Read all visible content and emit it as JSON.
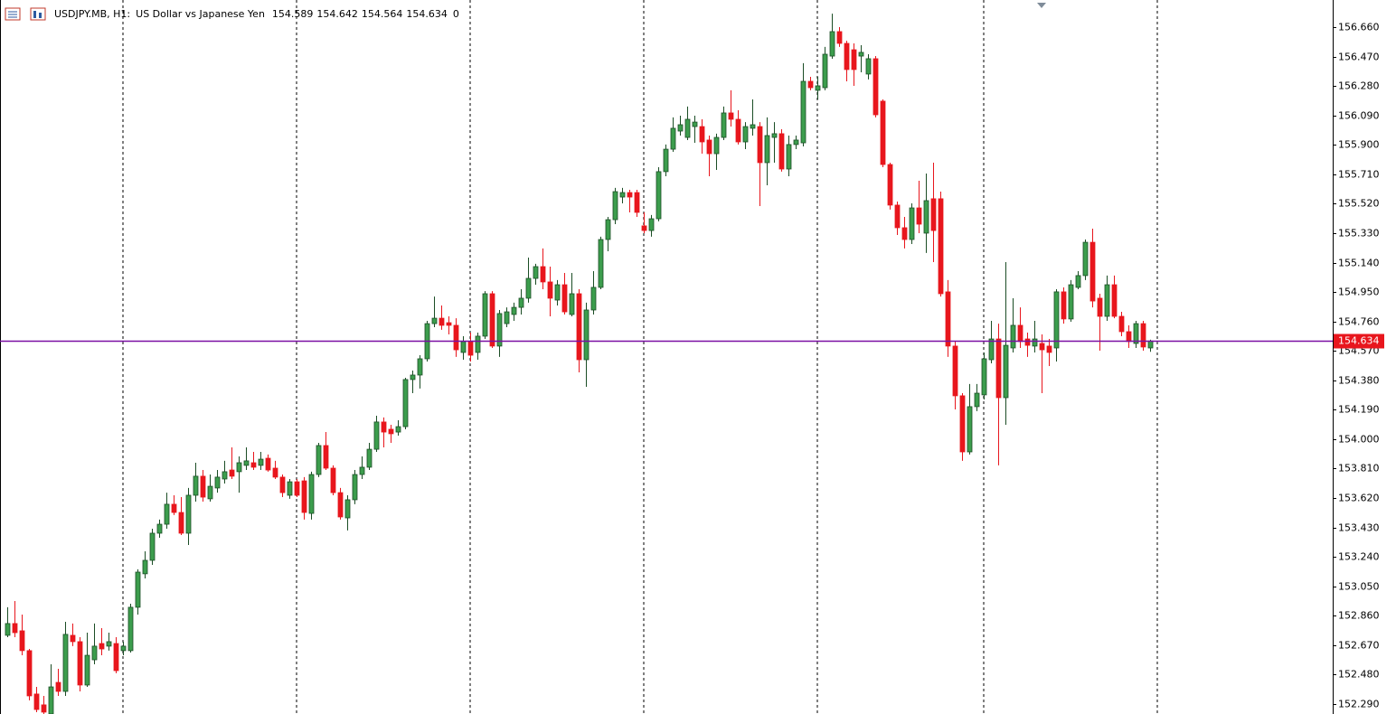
{
  "header": {
    "symbol": "USDJPY.MB, H1:",
    "description": "US Dollar vs Japanese Yen",
    "ohlc": [
      154.589,
      154.642,
      154.564,
      154.634
    ],
    "volume": 0
  },
  "chart_data": {
    "type": "candlestick",
    "up_color": "#3c9d4d",
    "down_color": "#e8161d",
    "price_line_color": "#7a0fa3",
    "price_line": 154.634,
    "ylim": [
      152.226,
      156.835
    ],
    "yticks": [
      {
        "value": 152.29,
        "label": "152.290"
      },
      {
        "value": 152.48,
        "label": "152.480"
      },
      {
        "value": 152.67,
        "label": "152.670"
      },
      {
        "value": 152.86,
        "label": "152.860"
      },
      {
        "value": 153.05,
        "label": "153.050"
      },
      {
        "value": 153.24,
        "label": "153.240"
      },
      {
        "value": 153.43,
        "label": "153.430"
      },
      {
        "value": 153.62,
        "label": "153.620"
      },
      {
        "value": 153.81,
        "label": "153.810"
      },
      {
        "value": 154.0,
        "label": "154.000"
      },
      {
        "value": 154.19,
        "label": "154.190"
      },
      {
        "value": 154.38,
        "label": "154.380"
      },
      {
        "value": 154.57,
        "label": "154.570"
      },
      {
        "value": 154.76,
        "label": "154.760"
      },
      {
        "value": 154.95,
        "label": "154.950"
      },
      {
        "value": 155.14,
        "label": "155.140"
      },
      {
        "value": 155.33,
        "label": "155.330"
      },
      {
        "value": 155.52,
        "label": "155.520"
      },
      {
        "value": 155.71,
        "label": "155.710"
      },
      {
        "value": 155.9,
        "label": "155.900"
      },
      {
        "value": 156.09,
        "label": "156.090"
      },
      {
        "value": 156.28,
        "label": "156.280"
      },
      {
        "value": 156.47,
        "label": "156.470"
      },
      {
        "value": 156.66,
        "label": "156.660"
      }
    ],
    "open": [
      152.734,
      152.81,
      152.763,
      152.635,
      152.355,
      152.285,
      152.226,
      152.43,
      152.372,
      152.734,
      152.693,
      152.413,
      152.576,
      152.681,
      152.664,
      152.681,
      152.635,
      152.635,
      152.915,
      153.131,
      153.218,
      153.393,
      153.451,
      153.58,
      153.527,
      153.393,
      153.638,
      153.761,
      153.615,
      153.685,
      153.743,
      153.801,
      153.79,
      153.831,
      153.848,
      153.831,
      153.877,
      153.813,
      153.755,
      153.638,
      153.725,
      153.731,
      153.521,
      153.772,
      153.959,
      153.813,
      153.655,
      153.492,
      153.609,
      153.772,
      153.819,
      153.935,
      154.111,
      154.064,
      154.046,
      154.081,
      154.385,
      154.414,
      154.519,
      154.746,
      154.781,
      154.752,
      154.735,
      154.56,
      154.63,
      154.56,
      154.665,
      154.939,
      154.601,
      154.746,
      154.805,
      154.851,
      154.91,
      155.038,
      155.114,
      155.015,
      154.898,
      154.997,
      154.805,
      154.939,
      154.513,
      154.834,
      154.98,
      155.289,
      155.417,
      155.563,
      155.592,
      155.592,
      155.377,
      155.347,
      155.423,
      155.727,
      155.872,
      155.989,
      155.948,
      156.018,
      156.018,
      155.931,
      155.843,
      155.948,
      156.106,
      156.065,
      155.919,
      156.007,
      156.018,
      155.785,
      155.948,
      155.972,
      155.744,
      155.902,
      155.913,
      156.31,
      156.252,
      156.269,
      156.473,
      156.631,
      156.555,
      156.514,
      156.473,
      156.357,
      156.456,
      156.182,
      155.773,
      155.511,
      155.365,
      155.289,
      155.493,
      155.33,
      155.552,
      155.552,
      154.951,
      154.601,
      154.28,
      153.918,
      154.21,
      154.286,
      154.513,
      154.647,
      154.268,
      154.589,
      154.735,
      154.647,
      154.601,
      154.618,
      154.601,
      154.589,
      154.951,
      154.776,
      154.98,
      155.056,
      155.271,
      154.91,
      154.793,
      154.997,
      154.793,
      154.694,
      154.618,
      154.746,
      154.589
    ],
    "high": [
      152.915,
      152.955,
      152.868,
      152.646,
      152.401,
      152.343,
      152.547,
      152.518,
      152.821,
      152.81,
      152.722,
      152.751,
      152.81,
      152.78,
      152.751,
      152.722,
      152.693,
      152.938,
      153.16,
      153.276,
      153.422,
      153.481,
      153.655,
      153.638,
      153.626,
      153.685,
      153.848,
      153.801,
      153.772,
      153.801,
      153.86,
      153.947,
      153.889,
      153.947,
      153.918,
      153.918,
      153.901,
      153.86,
      153.772,
      153.743,
      153.743,
      153.755,
      153.79,
      153.976,
      154.046,
      153.831,
      153.685,
      153.638,
      153.801,
      153.889,
      153.976,
      154.151,
      154.14,
      154.093,
      154.122,
      154.396,
      154.443,
      154.542,
      154.764,
      154.921,
      154.863,
      154.793,
      154.781,
      154.665,
      154.688,
      154.688,
      154.956,
      154.956,
      154.834,
      154.851,
      154.881,
      154.968,
      155.172,
      155.132,
      155.231,
      155.114,
      155.027,
      155.073,
      155.073,
      154.968,
      154.881,
      155.085,
      155.307,
      155.435,
      155.622,
      155.622,
      155.61,
      155.61,
      155.464,
      155.447,
      155.756,
      155.902,
      156.077,
      156.088,
      156.147,
      156.088,
      156.065,
      155.96,
      155.972,
      156.147,
      156.252,
      156.123,
      156.047,
      156.193,
      156.047,
      156.077,
      156.047,
      156.001,
      155.96,
      155.96,
      156.427,
      156.339,
      156.339,
      156.532,
      156.747,
      156.66,
      156.572,
      156.555,
      156.543,
      156.485,
      156.473,
      156.193,
      155.785,
      155.534,
      155.435,
      155.522,
      155.668,
      155.715,
      155.785,
      155.598,
      155.027,
      154.63,
      154.297,
      154.356,
      154.356,
      154.56,
      154.764,
      154.746,
      155.143,
      154.91,
      154.851,
      154.688,
      154.764,
      154.676,
      154.647,
      154.968,
      154.98,
      155.027,
      155.085,
      155.289,
      155.359,
      154.939,
      155.056,
      155.056,
      154.822,
      154.735,
      154.764,
      154.764,
      154.642
    ],
    "low": [
      152.722,
      152.722,
      152.605,
      152.314,
      152.238,
      152.226,
      152.226,
      152.343,
      152.343,
      152.664,
      152.372,
      152.401,
      152.547,
      152.605,
      152.635,
      152.489,
      152.605,
      152.623,
      152.868,
      153.101,
      153.189,
      153.364,
      153.422,
      153.51,
      153.381,
      153.317,
      153.597,
      153.597,
      153.597,
      153.655,
      153.714,
      153.743,
      153.655,
      153.801,
      153.801,
      153.801,
      153.79,
      153.743,
      153.626,
      153.615,
      153.626,
      153.481,
      153.481,
      153.755,
      153.801,
      153.638,
      153.481,
      153.411,
      153.58,
      153.743,
      153.801,
      153.918,
      153.947,
      153.976,
      154.023,
      154.064,
      154.297,
      154.327,
      154.501,
      154.723,
      154.706,
      154.676,
      154.531,
      154.513,
      154.501,
      154.513,
      154.647,
      154.589,
      154.531,
      154.723,
      154.764,
      154.805,
      154.881,
      154.997,
      154.968,
      154.793,
      154.863,
      154.805,
      154.793,
      154.431,
      154.338,
      154.805,
      154.968,
      155.213,
      155.388,
      155.522,
      155.464,
      155.435,
      155.33,
      155.307,
      155.406,
      155.697,
      155.855,
      155.96,
      155.931,
      155.913,
      155.843,
      155.697,
      155.738,
      155.931,
      156.018,
      155.902,
      155.872,
      155.96,
      155.505,
      155.639,
      155.785,
      155.727,
      155.697,
      155.872,
      155.89,
      156.252,
      156.193,
      156.252,
      156.456,
      156.532,
      156.31,
      156.281,
      156.368,
      156.322,
      156.077,
      155.756,
      155.482,
      155.318,
      155.231,
      155.26,
      155.33,
      155.202,
      155.143,
      154.921,
      154.531,
      154.192,
      153.86,
      153.901,
      154.181,
      154.256,
      154.49,
      153.831,
      154.093,
      154.56,
      154.589,
      154.531,
      154.56,
      154.297,
      154.472,
      154.501,
      154.746,
      154.758,
      154.968,
      155.027,
      154.851,
      154.571,
      154.764,
      154.781,
      154.665,
      154.589,
      154.589,
      154.571,
      154.564
    ],
    "close": [
      152.81,
      152.751,
      152.635,
      152.343,
      152.255,
      152.238,
      152.401,
      152.372,
      152.74,
      152.693,
      152.413,
      152.605,
      152.664,
      152.646,
      152.693,
      152.506,
      152.664,
      152.915,
      153.142,
      153.218,
      153.393,
      153.451,
      153.58,
      153.527,
      153.393,
      153.638,
      153.761,
      153.626,
      153.696,
      153.755,
      153.79,
      153.761,
      153.848,
      153.86,
      153.819,
      153.871,
      153.801,
      153.755,
      153.655,
      153.725,
      153.638,
      153.527,
      153.772,
      153.959,
      153.813,
      153.655,
      153.498,
      153.609,
      153.772,
      153.819,
      153.935,
      154.111,
      154.046,
      154.035,
      154.081,
      154.385,
      154.414,
      154.519,
      154.746,
      154.781,
      154.735,
      154.735,
      154.577,
      154.63,
      154.542,
      154.665,
      154.939,
      154.601,
      154.811,
      154.822,
      154.851,
      154.91,
      155.038,
      155.114,
      155.015,
      154.91,
      154.997,
      154.822,
      154.939,
      154.513,
      154.834,
      154.98,
      155.289,
      155.417,
      155.598,
      155.592,
      155.563,
      155.464,
      155.347,
      155.423,
      155.727,
      155.872,
      156.007,
      156.03,
      156.065,
      156.047,
      155.919,
      155.843,
      155.948,
      156.106,
      156.065,
      155.919,
      156.018,
      156.03,
      155.785,
      155.96,
      155.972,
      155.744,
      155.902,
      155.931,
      156.31,
      156.269,
      156.281,
      156.485,
      156.631,
      156.555,
      156.386,
      156.386,
      156.497,
      156.456,
      156.094,
      155.773,
      155.511,
      155.365,
      155.289,
      155.493,
      155.388,
      155.54,
      155.347,
      154.939,
      154.601,
      154.28,
      153.918,
      154.21,
      154.297,
      154.519,
      154.647,
      154.268,
      154.606,
      154.735,
      154.63,
      154.606,
      154.647,
      154.577,
      154.56,
      154.951,
      154.776,
      154.997,
      155.056,
      155.271,
      154.892,
      154.793,
      154.997,
      154.793,
      154.694,
      154.63,
      154.746,
      154.595,
      154.634
    ]
  }
}
